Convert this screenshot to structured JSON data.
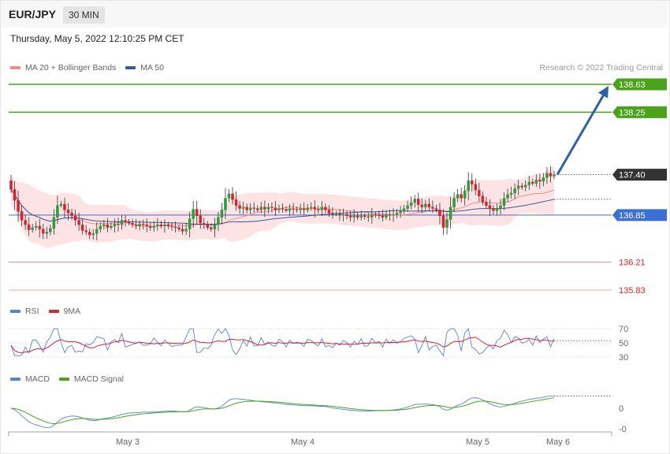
{
  "header": {
    "pair": "EUR/JPY",
    "timeframe": "30 MIN"
  },
  "timestamp": "Thursday, May 5, 2022 12:10:25 PM CET",
  "credit": "Research © 2022 Trading Central",
  "colors": {
    "up": "#2e9b3c",
    "down": "#d9232e",
    "resistance": "#4aa31a",
    "support_blue": "#3b6fd8",
    "support_red": "#e21f1f",
    "price_tag": "#333333",
    "ma50": "#3b5998",
    "ma20": "#f08a8a",
    "band_fill": "#fde3e3",
    "arrow": "#2f5fa8"
  },
  "price_panel": {
    "legend": [
      {
        "name": "MA 20 + Bollinger Bands",
        "color": "#f08a8a"
      },
      {
        "name": "MA 50",
        "color": "#3b5998"
      }
    ],
    "levels": [
      {
        "value": 138.63,
        "label": "138.63",
        "type": "resistance"
      },
      {
        "value": 138.25,
        "label": "138.25",
        "type": "resistance"
      },
      {
        "value": 137.4,
        "label": "137.40",
        "type": "current"
      },
      {
        "value": 136.85,
        "label": "136.85",
        "type": "support_blue"
      },
      {
        "value": 136.21,
        "label": "136.21",
        "type": "support_red"
      },
      {
        "value": 135.83,
        "label": "135.83",
        "type": "support_red"
      }
    ],
    "forecast_target": 138.63
  },
  "rsi_panel": {
    "legend": [
      {
        "name": "RSI",
        "color": "#5b7fd6"
      },
      {
        "name": "9MA",
        "color": "#d9232e"
      }
    ],
    "ticks": [
      "70",
      "50",
      "30"
    ],
    "levels": [
      70,
      50,
      30
    ]
  },
  "macd_panel": {
    "legend": [
      {
        "name": "MACD",
        "color": "#5b7fd6"
      },
      {
        "name": "MACD Signal",
        "color": "#4aa31a"
      }
    ],
    "ticks": [
      "0",
      "-0"
    ]
  },
  "x_axis": {
    "labels": [
      "May 3",
      "May 4",
      "May 5",
      "May 6"
    ]
  },
  "chart_data": {
    "type": "candlestick",
    "title": "EUR/JPY",
    "x_labels": [
      "May 3",
      "May 4",
      "May 5",
      "May 6"
    ],
    "y_range": [
      135.7,
      138.8
    ],
    "closes": [
      137.2,
      137.05,
      136.9,
      136.78,
      136.72,
      136.65,
      136.68,
      136.7,
      136.66,
      136.6,
      136.62,
      136.67,
      136.82,
      136.98,
      137.0,
      136.92,
      136.88,
      136.84,
      136.78,
      136.72,
      136.64,
      136.62,
      136.58,
      136.6,
      136.66,
      136.7,
      136.72,
      136.68,
      136.7,
      136.73,
      136.72,
      136.78,
      136.76,
      136.74,
      136.72,
      136.7,
      136.73,
      136.72,
      136.7,
      136.68,
      136.7,
      136.72,
      136.7,
      136.72,
      136.7,
      136.69,
      136.68,
      136.66,
      136.63,
      136.66,
      136.8,
      136.93,
      136.84,
      136.74,
      136.72,
      136.68,
      136.66,
      136.72,
      136.82,
      136.92,
      137.08,
      137.14,
      137.06,
      136.98,
      136.94,
      136.96,
      136.92,
      136.95,
      136.94,
      136.92,
      136.96,
      136.93,
      136.96,
      136.95,
      136.92,
      136.94,
      136.93,
      136.91,
      136.94,
      136.93,
      136.92,
      136.94,
      136.92,
      136.95,
      136.96,
      136.93,
      136.92,
      136.96,
      136.92,
      136.88,
      136.86,
      136.87,
      136.85,
      136.86,
      136.84,
      136.82,
      136.84,
      136.82,
      136.84,
      136.83,
      136.82,
      136.86,
      136.85,
      136.84,
      136.82,
      136.86,
      136.85,
      136.86,
      136.88,
      136.9,
      136.94,
      136.98,
      137.02,
      137.07,
      136.99,
      136.96,
      137.0,
      136.96,
      136.94,
      136.92,
      136.84,
      136.68,
      136.79,
      136.96,
      137.08,
      137.13,
      137.08,
      137.18,
      137.32,
      137.27,
      137.19,
      137.11,
      137.03,
      136.98,
      136.94,
      136.91,
      136.94,
      136.98,
      137.08,
      137.13,
      137.15,
      137.21,
      137.25,
      137.23,
      137.26,
      137.3,
      137.28,
      137.33,
      137.31,
      137.36,
      137.42,
      137.38,
      137.4
    ]
  }
}
